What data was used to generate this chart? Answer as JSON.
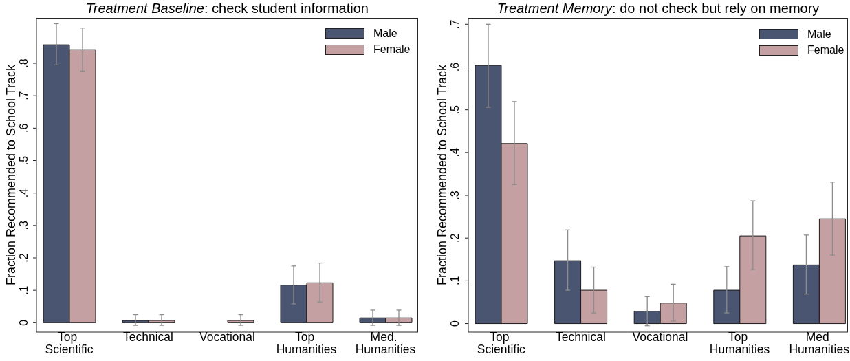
{
  "chart_data": [
    {
      "type": "bar",
      "title": "Treatment Baseline: check student information",
      "ylabel": "Fraction Recommended to School Track",
      "categories": [
        "Top Scientific",
        "Technical",
        "Vocational",
        "Top Humanities",
        "Med. Humanities"
      ],
      "series": [
        {
          "name": "Male",
          "color": "#4a5572",
          "values": [
            0.857,
            0.007,
            0,
            0.116,
            0.015
          ],
          "errors": [
            [
              0.795,
              0.922
            ],
            [
              -0.008,
              0.025
            ],
            [
              0,
              0
            ],
            [
              0.058,
              0.175
            ],
            [
              -0.008,
              0.039
            ]
          ]
        },
        {
          "name": "Female",
          "color": "#c5a0a2",
          "values": [
            0.842,
            0.007,
            0.007,
            0.123,
            0.015
          ],
          "errors": [
            [
              0.776,
              0.909
            ],
            [
              -0.008,
              0.025
            ],
            [
              -0.008,
              0.025
            ],
            [
              0.064,
              0.184
            ],
            [
              -0.008,
              0.039
            ]
          ]
        }
      ],
      "ylim": [
        -0.029,
        0.94
      ],
      "yticks": [
        0,
        {
          "value": 0.1,
          "label": ".1"
        },
        {
          "value": 0.2,
          "label": ".2"
        },
        {
          "value": 0.3,
          "label": ".3"
        },
        {
          "value": 0.4,
          "label": ".4"
        },
        {
          "value": 0.5,
          "label": ".5"
        },
        {
          "value": 0.6,
          "label": ".6"
        },
        {
          "value": 0.7,
          "label": ".7"
        },
        {
          "value": 0.8,
          "label": ".8"
        }
      ],
      "legend": "top right"
    },
    {
      "type": "bar",
      "title": "Treatment Memory: do not check but rely on memory",
      "ylabel": "Fraction Recommended to School Track",
      "categories": [
        "Top Scientific",
        "Technical",
        "Vocational",
        "Top Humanities",
        "Med Humanities"
      ],
      "series": [
        {
          "name": "Male",
          "color": "#4a5572",
          "values": [
            0.604,
            0.147,
            0.029,
            0.078,
            0.137
          ],
          "errors": [
            [
              0.506,
              0.7
            ],
            [
              0.078,
              0.219
            ],
            [
              -0.005,
              0.063
            ],
            [
              0.025,
              0.133
            ],
            [
              0.069,
              0.207
            ]
          ]
        },
        {
          "name": "Female",
          "color": "#c5a0a2",
          "values": [
            0.421,
            0.078,
            0.048,
            0.205,
            0.245
          ],
          "errors": [
            [
              0.325,
              0.519
            ],
            [
              0.025,
              0.132
            ],
            [
              0.006,
              0.092
            ],
            [
              0.126,
              0.287
            ],
            [
              0.16,
              0.331
            ]
          ]
        }
      ],
      "ylim": [
        -0.02,
        0.715
      ],
      "yticks": [
        0,
        {
          "value": 0.1,
          "label": ".1"
        },
        {
          "value": 0.2,
          "label": ".2"
        },
        {
          "value": 0.3,
          "label": ".3"
        },
        {
          "value": 0.4,
          "label": ".4"
        },
        {
          "value": 0.5,
          "label": ".5"
        },
        {
          "value": 0.6,
          "label": ".6"
        },
        {
          "value": 0.7,
          "label": ".7"
        }
      ],
      "legend": "top right"
    }
  ]
}
